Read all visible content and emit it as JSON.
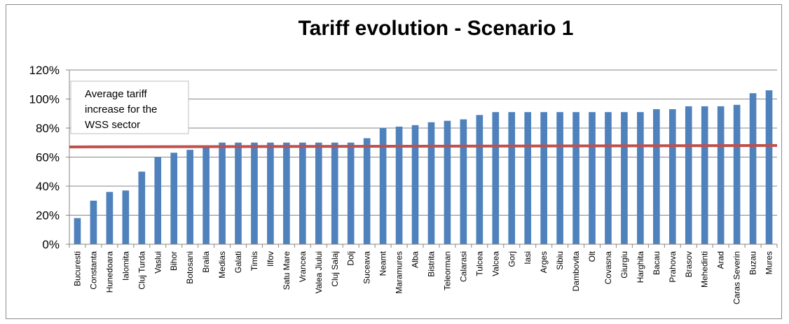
{
  "chart_data": {
    "type": "bar",
    "title": "Tariff evolution  - Scenario 1",
    "xlabel": "",
    "ylabel": "",
    "ylim": [
      0,
      120
    ],
    "y_ticks": [
      "0%",
      "20%",
      "40%",
      "60%",
      "80%",
      "100%",
      "120%"
    ],
    "y_tick_values": [
      0,
      20,
      40,
      60,
      80,
      100,
      120
    ],
    "grid": "horizontal",
    "bar_color": "#4f81bd",
    "categories": [
      "Bucuresti",
      "Constanta",
      "Hunedoara",
      "Ialomita",
      "Cluj Turda",
      "Vaslui",
      "Bihor",
      "Botosani",
      "Braila",
      "Medias",
      "Galati",
      "Timis",
      "Ilfov",
      "Satu Mare",
      "Vrancea",
      "Valea Jiului",
      "Cluj Salaj",
      "Dolj",
      "Suceava",
      "Neamt",
      "Maramures",
      "Alba",
      "Bistrita",
      "Teleorman",
      "Calarasi",
      "Tulcea",
      "Valcea",
      "Gorj",
      "Iasi",
      "Arges",
      "Sibiu",
      "Dambovita",
      "Olt",
      "Covasna",
      "Giurgiu",
      "Harghita",
      "Bacau",
      "Prahova",
      "Brasov",
      "Mehedinti",
      "Arad",
      "Caras Severin",
      "Buzau",
      "Mures"
    ],
    "values": [
      18,
      30,
      36,
      37,
      50,
      60,
      63,
      65,
      67,
      70,
      70,
      70,
      70,
      70,
      70,
      70,
      70,
      70,
      73,
      80,
      81,
      82,
      84,
      85,
      86,
      89,
      91,
      91,
      91,
      91,
      91,
      91,
      91,
      91,
      91,
      91,
      93,
      93,
      95,
      95,
      95,
      96,
      104,
      106
    ],
    "reference_line": {
      "label": "Average tariff increase for the WSS sector",
      "label_lines": [
        "Average tariff",
        "increase for the",
        "WSS sector"
      ],
      "start_value": 67,
      "end_value": 68,
      "color": "#c0504d"
    }
  }
}
